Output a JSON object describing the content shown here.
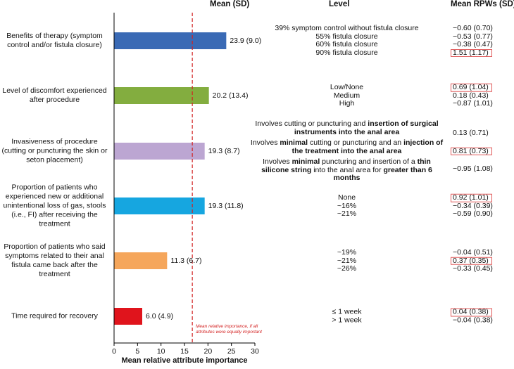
{
  "headers": {
    "mean": "Mean (SD)",
    "level": "Level",
    "rpws": "Mean RPWs (SD)"
  },
  "chart_data": {
    "type": "bar",
    "orientation": "horizontal",
    "xlabel": "Mean relative attribute importance",
    "xlim": [
      0,
      30
    ],
    "xticks": [
      0,
      5,
      10,
      15,
      20,
      25,
      30
    ],
    "reference_line": {
      "value": 16.67,
      "label": "Mean relative importance, if all attributes were equally important",
      "color": "#d32020"
    },
    "categories": [
      "Benefits of therapy (symptom control and/or fistula closure)",
      "Level of discomfort experienced after procedure",
      "Invasiveness of procedure (cutting or puncturing the skin or seton placement)",
      "Proportion of patients who experienced new or additional unintentional loss of gas, stools (i.e., FI) after receiving the treatment",
      "Proportion of patients who said symptoms related to their anal fistula came back after the treatment",
      "Time required for recovery"
    ],
    "values": [
      23.9,
      20.2,
      19.3,
      19.3,
      11.3,
      6.0
    ],
    "value_labels": [
      "23.9 (9.0)",
      "20.2 (13.4)",
      "19.3 (8.7)",
      "19.3 (11.8)",
      "11.3 (6.7)",
      "6.0 (4.9)"
    ],
    "colors": [
      "#3a6ab5",
      "#83ad3f",
      "#bca6d2",
      "#16a6e0",
      "#f5a65b",
      "#e0141c"
    ]
  },
  "levels": [
    {
      "items": [
        {
          "text": "39% symptom control without fistula closure",
          "rpw": "−0.60 (0.70)",
          "boxed": false
        },
        {
          "text": "55% fistula closure",
          "rpw": "−0.53 (0.77)",
          "boxed": false
        },
        {
          "text": "60% fistula closure",
          "rpw": "−0.38 (0.47)",
          "boxed": false
        },
        {
          "text": "90% fistula closure",
          "rpw": "1.51 (1.17)",
          "boxed": true
        }
      ]
    },
    {
      "items": [
        {
          "text": "Low/None",
          "rpw": "0.69 (1.04)",
          "boxed": true
        },
        {
          "text": "Medium",
          "rpw": "0.18 (0.43)",
          "boxed": false
        },
        {
          "text": "High",
          "rpw": "−0.87 (1.01)",
          "boxed": false
        }
      ]
    },
    {
      "items": [
        {
          "html": "Involves cutting or puncturing and <b>insertion of surgical instruments into the anal area</b>",
          "rpw": "0.13 (0.71)",
          "boxed": false
        },
        {
          "html": "Involves <b>minimal</b> cutting or puncturing and an <b>injection of the treatment into the anal area</b>",
          "rpw": "0.81 (0.73)",
          "boxed": true
        },
        {
          "html": "Involves <b>minimal</b> puncturing and insertion of a <b>thin silicone string</b> into the anal area for <b>greater than 6 months</b>",
          "rpw": "−0.95 (1.08)",
          "boxed": false
        }
      ]
    },
    {
      "items": [
        {
          "text": "None",
          "rpw": "0.92 (1.01)",
          "boxed": true
        },
        {
          "text": "~16%",
          "rpw": "−0.34 (0.39)",
          "boxed": false
        },
        {
          "text": "~21%",
          "rpw": "−0.59 (0.90)",
          "boxed": false
        }
      ]
    },
    {
      "items": [
        {
          "text": "~19%",
          "rpw": "−0.04 (0.51)",
          "boxed": false
        },
        {
          "text": "~21%",
          "rpw": "0.37 (0.35)",
          "boxed": true
        },
        {
          "text": "~26%",
          "rpw": "−0.33 (0.45)",
          "boxed": false
        }
      ]
    },
    {
      "items": [
        {
          "text": "≤ 1 week",
          "rpw": "0.04 (0.38)",
          "boxed": true
        },
        {
          "text": "> 1 week",
          "rpw": "−0.04 (0.38)",
          "boxed": false
        }
      ]
    }
  ]
}
